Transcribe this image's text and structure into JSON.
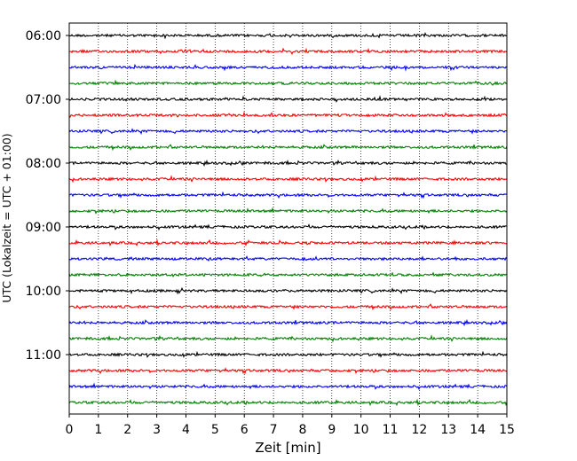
{
  "chart_data": {
    "type": "line",
    "subtype": "helicorder",
    "xlabel": "Zeit  [min]",
    "ylabel": "UTC (Lokalzeit = UTC + 01:00)",
    "xlim": [
      0,
      15
    ],
    "x_ticks": [
      0,
      1,
      2,
      3,
      4,
      5,
      6,
      7,
      8,
      9,
      10,
      11,
      12,
      13,
      14,
      15
    ],
    "x_grid": "dotted",
    "y_tick_labels": [
      "06:00",
      "07:00",
      "08:00",
      "09:00",
      "10:00",
      "11:00"
    ],
    "trace_minutes": 15,
    "trace_count": 24,
    "trace_start": "06:00",
    "trace_colors": [
      "#000000",
      "#ff0000",
      "#0000ff",
      "#008000"
    ],
    "amplitude": "small, continuous background noise on every trace"
  }
}
